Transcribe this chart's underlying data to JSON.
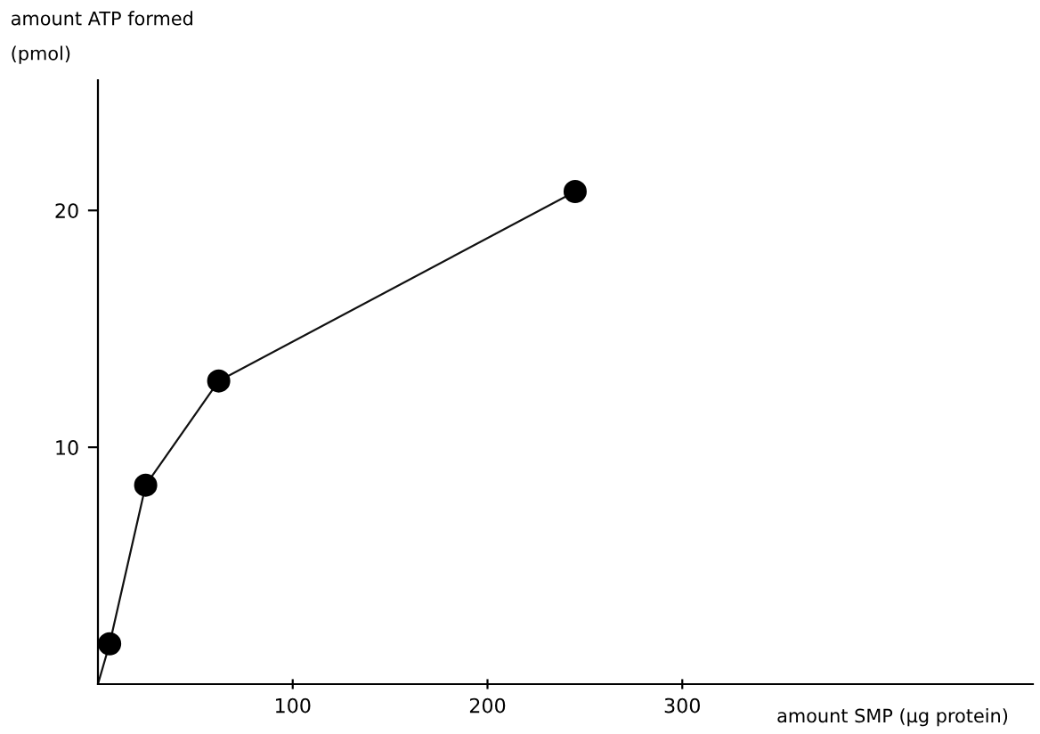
{
  "chart_data": {
    "type": "scatter",
    "xlabel": "amount SMP (μg protein)",
    "ylabel": "amount ATP formed\n(pmol)",
    "xlim": [
      0,
      480
    ],
    "ylim": [
      0,
      25.5
    ],
    "xticks": [
      100,
      200,
      300
    ],
    "yticks": [
      10,
      20
    ],
    "grid": false,
    "legend": false,
    "series": [
      {
        "type": "line",
        "color": "#111111",
        "x": [
          0,
          6,
          24.5,
          62,
          245
        ],
        "values": [
          0,
          1.7,
          8.4,
          12.8,
          20.8
        ],
        "marker": "none",
        "line_style": "solid"
      },
      {
        "color": "#000000",
        "x": [
          6,
          24.5,
          62,
          245
        ],
        "values": [
          1.7,
          8.4,
          12.8,
          20.8
        ],
        "marker": "circle"
      }
    ]
  }
}
